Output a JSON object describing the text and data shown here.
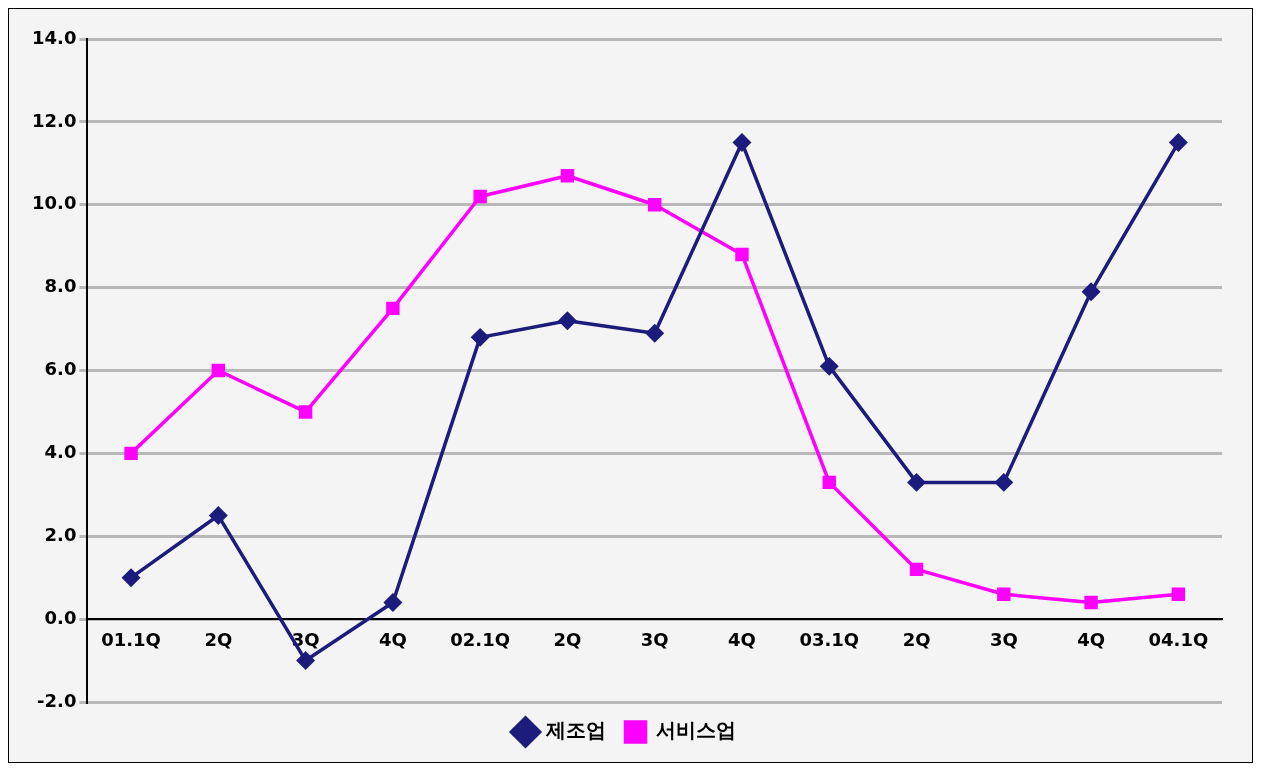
{
  "chart_data": {
    "type": "line",
    "categories": [
      "01.1Q",
      "2Q",
      "3Q",
      "4Q",
      "02.1Q",
      "2Q",
      "3Q",
      "4Q",
      "03.1Q",
      "2Q",
      "3Q",
      "4Q",
      "04.1Q"
    ],
    "series": [
      {
        "name": "제조업",
        "color": "#1c1c7c",
        "marker": "diamond",
        "values": [
          1.0,
          2.5,
          -1.0,
          0.4,
          6.8,
          7.2,
          6.9,
          11.5,
          6.1,
          3.3,
          3.3,
          7.9,
          11.5
        ]
      },
      {
        "name": "서비스업",
        "color": "#ff00ff",
        "marker": "square",
        "values": [
          4.0,
          6.0,
          5.0,
          7.5,
          10.2,
          10.7,
          10.0,
          8.8,
          3.3,
          1.2,
          0.6,
          0.4,
          0.6
        ]
      }
    ],
    "ylim": [
      -2,
      14
    ],
    "yticks": [
      {
        "value": -2,
        "label": "-2.0"
      },
      {
        "value": 0,
        "label": "0.0"
      },
      {
        "value": 2,
        "label": "2.0"
      },
      {
        "value": 4,
        "label": "4.0"
      },
      {
        "value": 6,
        "label": "6.0"
      },
      {
        "value": 8,
        "label": "8.0"
      },
      {
        "value": 10,
        "label": "10.0"
      },
      {
        "value": 12,
        "label": "12.0"
      },
      {
        "value": 14,
        "label": "14.0"
      }
    ],
    "grid": "y",
    "legend": "bottom",
    "line_style": "solid"
  }
}
